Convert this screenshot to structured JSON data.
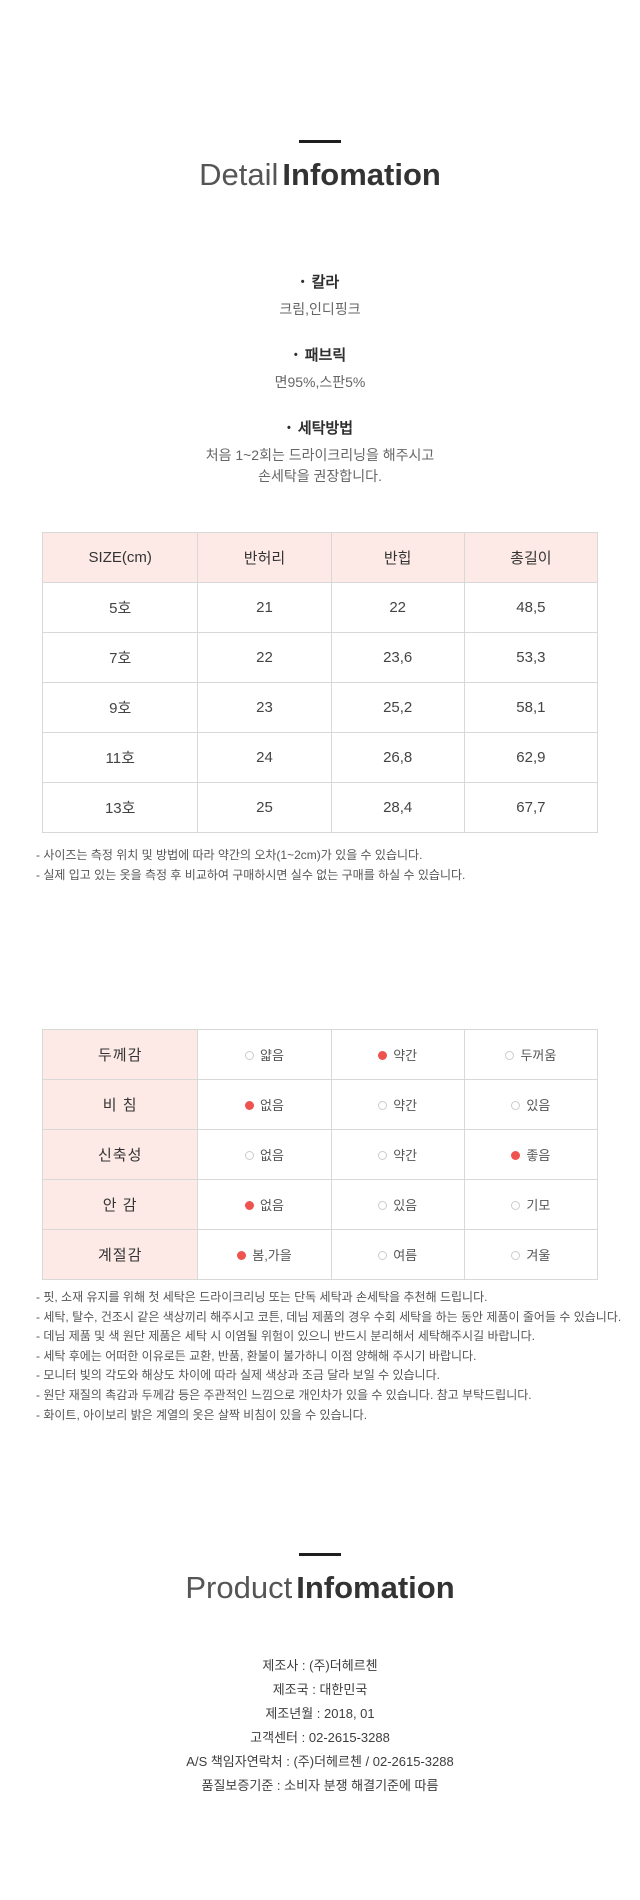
{
  "detail": {
    "title_light": "Detail",
    "title_bold": "Infomation"
  },
  "specs": [
    {
      "bullet": "•",
      "label": "칼라",
      "lines": [
        "크림,인디핑크"
      ]
    },
    {
      "bullet": "•",
      "label": "패브릭",
      "lines": [
        "면95%,스판5%"
      ]
    },
    {
      "bullet": "•",
      "label": "세탁방법",
      "lines": [
        "처음 1~2회는 드라이크리닝을 해주시고",
        "손세탁을 권장합니다."
      ]
    }
  ],
  "size_table": {
    "headers": [
      "SIZE(cm)",
      "반허리",
      "반힙",
      "총길이"
    ],
    "rows": [
      {
        "size": "5호",
        "values": [
          "21",
          "22",
          "48,5"
        ]
      },
      {
        "size": "7호",
        "values": [
          "22",
          "23,6",
          "53,3"
        ]
      },
      {
        "size": "9호",
        "values": [
          "23",
          "25,2",
          "58,1"
        ]
      },
      {
        "size": "11호",
        "values": [
          "24",
          "26,8",
          "62,9"
        ]
      },
      {
        "size": "13호",
        "values": [
          "25",
          "28,4",
          "67,7"
        ]
      }
    ]
  },
  "size_notes": [
    "- 사이즈는 측정 위치 및 방법에 따라 약간의 오차(1~2cm)가 있을 수 있습니다.",
    "- 실제 입고 있는 옷을 측정 후 비교하여 구매하시면 실수 없는 구매를 하실 수 있습니다."
  ],
  "attribute_table": {
    "rows": [
      {
        "label": "두께감",
        "options": [
          {
            "text": "얇음",
            "selected": false
          },
          {
            "text": "약간",
            "selected": true
          },
          {
            "text": "두꺼움",
            "selected": false
          }
        ]
      },
      {
        "label": "비  침",
        "options": [
          {
            "text": "없음",
            "selected": true
          },
          {
            "text": "약간",
            "selected": false
          },
          {
            "text": "있음",
            "selected": false
          }
        ]
      },
      {
        "label": "신축성",
        "options": [
          {
            "text": "없음",
            "selected": false
          },
          {
            "text": "약간",
            "selected": false
          },
          {
            "text": "좋음",
            "selected": true
          }
        ]
      },
      {
        "label": "안  감",
        "options": [
          {
            "text": "없음",
            "selected": true
          },
          {
            "text": "있음",
            "selected": false
          },
          {
            "text": "기모",
            "selected": false
          }
        ]
      },
      {
        "label": "계절감",
        "options": [
          {
            "text": "봄,가을",
            "selected": true
          },
          {
            "text": "여름",
            "selected": false
          },
          {
            "text": "겨울",
            "selected": false
          }
        ]
      }
    ]
  },
  "care_notes": [
    "- 핏, 소재 유지를 위해 첫 세탁은 드라이크리닝 또는 단독 세탁과 손세탁을 추천해 드립니다.",
    "- 세탁, 탈수, 건조시 같은 색상끼리 해주시고 코튼, 데님 제품의 경우 수회 세탁을 하는 동안 제품이 줄어들 수 있습니다.",
    "- 데님 제품 및 색 원단 제품은 세탁 시 이염될 위험이 있으니 반드시 분리해서 세탁해주시길 바랍니다.",
    "- 세탁 후에는 어떠한 이유로든 교환, 반품, 환불이 불가하니 이점 양해해 주시기 바랍니다.",
    "- 모니터 빛의 각도와 해상도 차이에 따라 실제 색상과 조금 달라 보일 수 있습니다.",
    "- 원단 재질의 촉감과 두께감 등은 주관적인 느낌으로 개인차가 있을 수 있습니다. 참고 부탁드립니다.",
    "- 화이트, 아이보리 밝은 계열의 옷은 살짝 비침이 있을 수 있습니다."
  ],
  "product": {
    "title_light": "Product",
    "title_bold": "Infomation"
  },
  "product_info": [
    {
      "label": "제조사",
      "value": "(주)더헤르첸"
    },
    {
      "label": "제조국",
      "value": "대한민국"
    },
    {
      "label": "제조년월",
      "value": "2018, 01"
    },
    {
      "label": "고객센터",
      "value": "02-2615-3288"
    },
    {
      "label": "A/S 책임자연락처",
      "value": "(주)더헤르첸 / 02-2615-3288"
    },
    {
      "label": "품질보증기준",
      "value": "소비자 분쟁 해결기준에 따름"
    }
  ],
  "colors": {
    "header_pink_bg": "#fdeae6",
    "selected_dot_red": "#ef5350",
    "table_border": "#d8d8d8"
  }
}
